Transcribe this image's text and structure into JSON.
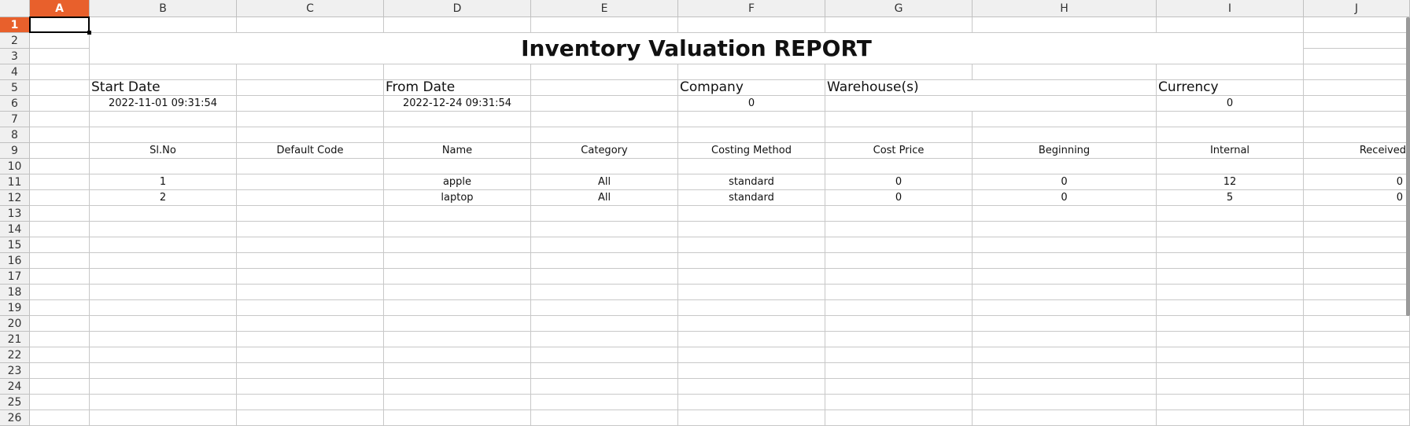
{
  "sheet": {
    "columns": [
      "A",
      "B",
      "C",
      "D",
      "E",
      "F",
      "G",
      "H",
      "I",
      "J"
    ],
    "rows": [
      "1",
      "2",
      "3",
      "4",
      "5",
      "6",
      "7",
      "8",
      "9",
      "10",
      "11",
      "12",
      "13",
      "14",
      "15",
      "16",
      "17",
      "18",
      "19",
      "20",
      "21",
      "22",
      "23",
      "24",
      "25",
      "26"
    ],
    "selected_cell": "A1",
    "accent_color": "#e8602c"
  },
  "report": {
    "title": "Inventory Valuation REPORT",
    "start_date_label": "Start Date",
    "start_date_value": "2022-11-01 09:31:54",
    "from_date_label": "From Date",
    "from_date_value": "2022-12-24 09:31:54",
    "company_label": "Company",
    "company_value": "0",
    "warehouse_label": "Warehouse(s)",
    "warehouse_value": "",
    "currency_label": "Currency",
    "currency_value": "0",
    "headers": [
      "Sl.No",
      "Default Code",
      "Name",
      "Category",
      "Costing Method",
      "Cost Price",
      "Beginning",
      "Internal",
      "Received"
    ],
    "rows": [
      [
        "1",
        "",
        "apple",
        "All",
        "standard",
        "0",
        "0",
        "12",
        "0"
      ],
      [
        "2",
        "",
        "laptop",
        "All",
        "standard",
        "0",
        "0",
        "5",
        "0"
      ]
    ]
  }
}
